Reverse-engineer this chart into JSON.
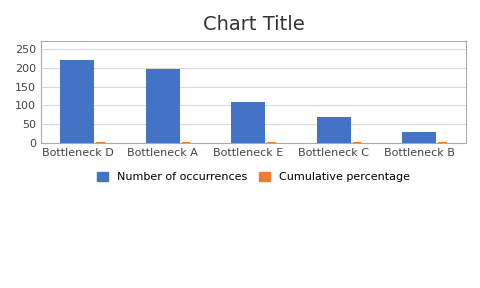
{
  "title": "Chart Title",
  "categories": [
    "Bottleneck D",
    "Bottleneck A",
    "Bottleneck E",
    "Bottleneck C",
    "Bottleneck B"
  ],
  "bar_values": [
    220,
    195,
    108,
    70,
    30
  ],
  "cumulative_values": [
    3,
    3,
    3,
    3,
    3
  ],
  "bar_color": "#4472C4",
  "cumulative_color": "#ED7D31",
  "ylim": [
    0,
    270
  ],
  "yticks": [
    0,
    50,
    100,
    150,
    200,
    250
  ],
  "legend_labels": [
    "Number of occurrences",
    "Cumulative percentage"
  ],
  "background_color": "#FFFFFF",
  "grid_color": "#D9D9D9",
  "title_fontsize": 14,
  "tick_fontsize": 8,
  "legend_fontsize": 8,
  "bar_width": 0.4,
  "cum_bar_width": 0.1,
  "border_color": "#AAAAAA"
}
